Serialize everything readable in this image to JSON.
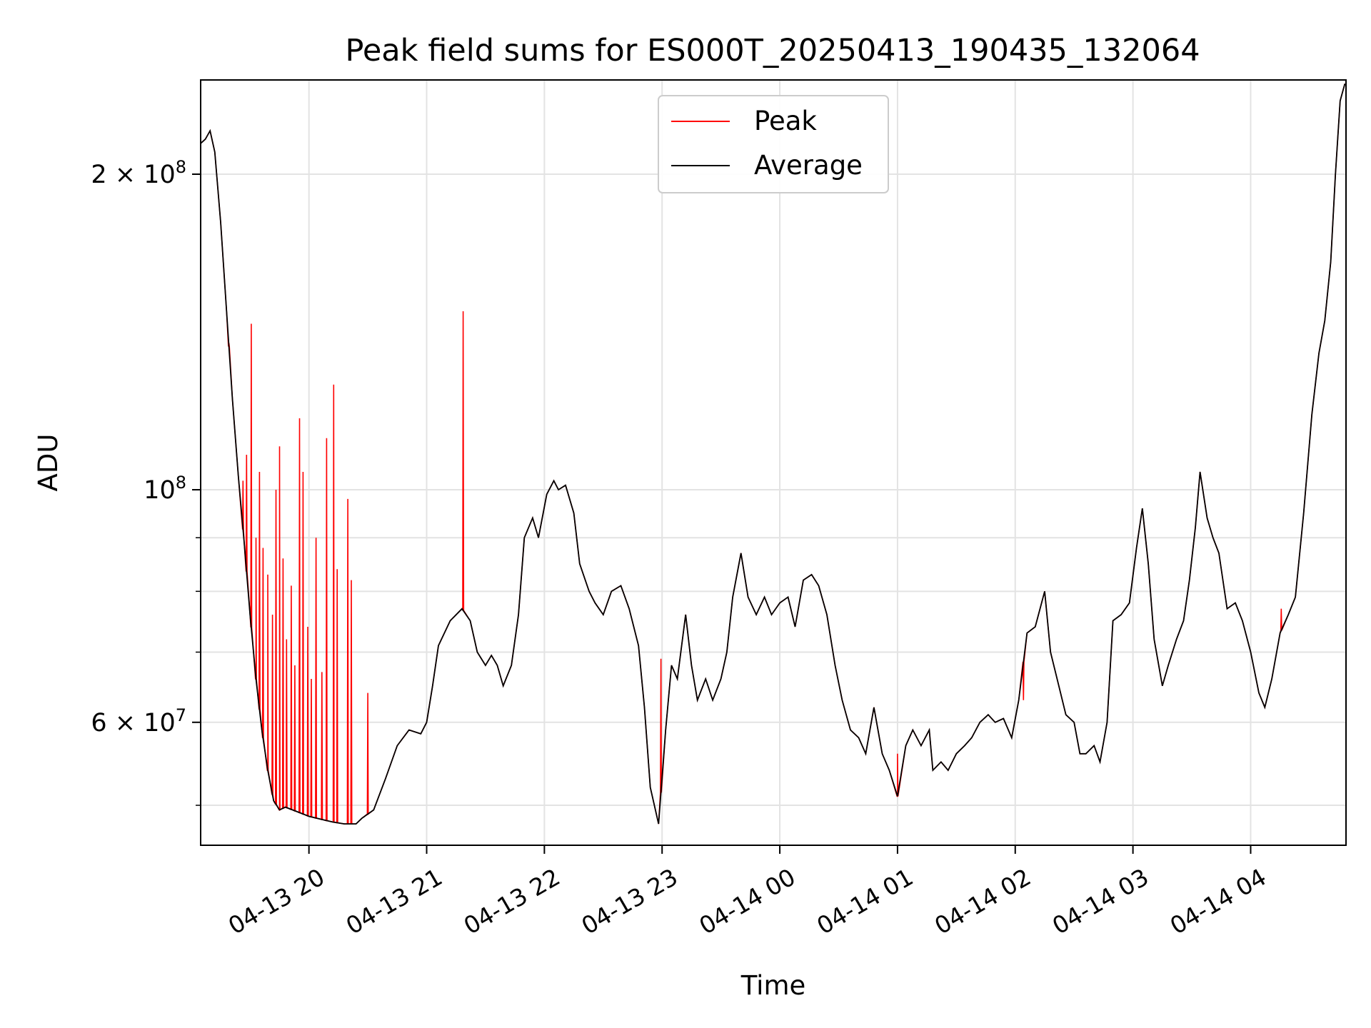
{
  "chart_data": {
    "type": "line",
    "title": "Peak field sums for ES000T_20250413_190435_132064",
    "xlabel": "Time",
    "ylabel": "ADU",
    "yscale": "log",
    "x_unit": "hours",
    "xlim": [
      19.08,
      28.81
    ],
    "ylim": [
      45800000,
      246000000
    ],
    "x_ticks": [
      {
        "value": 20,
        "label": "04-13 20"
      },
      {
        "value": 21,
        "label": "04-13 21"
      },
      {
        "value": 22,
        "label": "04-13 22"
      },
      {
        "value": 23,
        "label": "04-13 23"
      },
      {
        "value": 24,
        "label": "04-14 00"
      },
      {
        "value": 25,
        "label": "04-14 01"
      },
      {
        "value": 26,
        "label": "04-14 02"
      },
      {
        "value": 27,
        "label": "04-14 03"
      },
      {
        "value": 28,
        "label": "04-14 04"
      }
    ],
    "y_major_ticks": [
      {
        "value": 100000000,
        "base": "10",
        "exp": "8",
        "mant": ""
      },
      {
        "value": 200000000,
        "base": "10",
        "exp": "8",
        "mant": "2"
      },
      {
        "value": 60000000,
        "base": "10",
        "exp": "7",
        "mant": "6"
      }
    ],
    "y_minor_ticks": [
      50000000,
      70000000,
      80000000,
      90000000
    ],
    "grid": true,
    "legend_position": "upper-center",
    "series": [
      {
        "name": "Peak",
        "color": "#ff0000",
        "spikes": [
          [
            19.32,
            138000000.0
          ],
          [
            19.44,
            102000000.0
          ],
          [
            19.47,
            108000000.0
          ],
          [
            19.51,
            144000000.0
          ],
          [
            19.55,
            90000000.0
          ],
          [
            19.58,
            104000000.0
          ],
          [
            19.61,
            88000000.0
          ],
          [
            19.65,
            83000000.0
          ],
          [
            19.69,
            76000000.0
          ],
          [
            19.72,
            100000000.0
          ],
          [
            19.75,
            110000000.0
          ],
          [
            19.78,
            86000000.0
          ],
          [
            19.81,
            72000000.0
          ],
          [
            19.85,
            81000000.0
          ],
          [
            19.88,
            68000000.0
          ],
          [
            19.92,
            117000000.0
          ],
          [
            19.95,
            104000000.0
          ],
          [
            19.99,
            74000000.0
          ],
          [
            20.02,
            66000000.0
          ],
          [
            20.06,
            90000000.0
          ],
          [
            20.11,
            67000000.0
          ],
          [
            20.15,
            112000000.0
          ],
          [
            20.21,
            126000000.0
          ],
          [
            20.24,
            84000000.0
          ],
          [
            20.33,
            98000000.0
          ],
          [
            20.36,
            82000000.0
          ],
          [
            20.5,
            64000000.0
          ],
          [
            21.31,
            148000000.0
          ],
          [
            22.99,
            69000000.0
          ],
          [
            25.0,
            56000000.0
          ],
          [
            26.07,
            63000000.0
          ],
          [
            28.26,
            77000000.0
          ]
        ]
      },
      {
        "name": "Average",
        "color": "#000000",
        "points": [
          [
            19.08,
            214000000.0
          ],
          [
            19.12,
            216000000.0
          ],
          [
            19.16,
            220000000.0
          ],
          [
            19.2,
            210000000.0
          ],
          [
            19.25,
            180000000.0
          ],
          [
            19.3,
            148000000.0
          ],
          [
            19.35,
            122000000.0
          ],
          [
            19.4,
            103000000.0
          ],
          [
            19.45,
            89000000.0
          ],
          [
            19.5,
            76000000.0
          ],
          [
            19.55,
            66000000.0
          ],
          [
            19.6,
            59000000.0
          ],
          [
            19.65,
            54000000.0
          ],
          [
            19.7,
            50500000.0
          ],
          [
            19.75,
            49500000.0
          ],
          [
            19.8,
            49800000.0
          ],
          [
            19.9,
            49300000.0
          ],
          [
            20.0,
            48800000.0
          ],
          [
            20.1,
            48500000.0
          ],
          [
            20.2,
            48200000.0
          ],
          [
            20.3,
            48000000.0
          ],
          [
            20.4,
            48000000.0
          ],
          [
            20.45,
            48600000.0
          ],
          [
            20.55,
            49500000.0
          ],
          [
            20.65,
            53000000.0
          ],
          [
            20.75,
            57000000.0
          ],
          [
            20.85,
            59000000.0
          ],
          [
            20.95,
            58500000.0
          ],
          [
            21.0,
            60000000.0
          ],
          [
            21.05,
            65000000.0
          ],
          [
            21.1,
            71000000.0
          ],
          [
            21.2,
            75000000.0
          ],
          [
            21.3,
            77000000.0
          ],
          [
            21.37,
            75000000.0
          ],
          [
            21.43,
            70000000.0
          ],
          [
            21.5,
            68000000.0
          ],
          [
            21.55,
            69500000.0
          ],
          [
            21.6,
            68000000.0
          ],
          [
            21.65,
            65000000.0
          ],
          [
            21.72,
            68000000.0
          ],
          [
            21.78,
            76000000.0
          ],
          [
            21.83,
            90000000.0
          ],
          [
            21.9,
            94000000.0
          ],
          [
            21.95,
            90000000.0
          ],
          [
            22.02,
            99000000.0
          ],
          [
            22.08,
            102000000.0
          ],
          [
            22.12,
            100000000.0
          ],
          [
            22.18,
            101000000.0
          ],
          [
            22.25,
            95000000.0
          ],
          [
            22.3,
            85000000.0
          ],
          [
            22.38,
            80000000.0
          ],
          [
            22.43,
            78000000.0
          ],
          [
            22.5,
            76000000.0
          ],
          [
            22.57,
            80000000.0
          ],
          [
            22.65,
            81000000.0
          ],
          [
            22.72,
            77000000.0
          ],
          [
            22.8,
            71000000.0
          ],
          [
            22.85,
            62000000.0
          ],
          [
            22.9,
            52000000.0
          ],
          [
            22.97,
            48000000.0
          ],
          [
            23.03,
            59000000.0
          ],
          [
            23.08,
            68000000.0
          ],
          [
            23.13,
            66000000.0
          ],
          [
            23.2,
            76000000.0
          ],
          [
            23.25,
            68000000.0
          ],
          [
            23.3,
            63000000.0
          ],
          [
            23.37,
            66000000.0
          ],
          [
            23.43,
            63000000.0
          ],
          [
            23.5,
            66000000.0
          ],
          [
            23.55,
            70000000.0
          ],
          [
            23.6,
            79000000.0
          ],
          [
            23.67,
            87000000.0
          ],
          [
            23.73,
            79000000.0
          ],
          [
            23.8,
            76000000.0
          ],
          [
            23.87,
            79000000.0
          ],
          [
            23.93,
            76000000.0
          ],
          [
            24.0,
            78000000.0
          ],
          [
            24.07,
            79000000.0
          ],
          [
            24.13,
            74000000.0
          ],
          [
            24.2,
            82000000.0
          ],
          [
            24.27,
            83000000.0
          ],
          [
            24.33,
            81000000.0
          ],
          [
            24.4,
            76000000.0
          ],
          [
            24.47,
            68000000.0
          ],
          [
            24.53,
            63000000.0
          ],
          [
            24.6,
            59000000.0
          ],
          [
            24.67,
            58000000.0
          ],
          [
            24.73,
            56000000.0
          ],
          [
            24.8,
            62000000.0
          ],
          [
            24.87,
            56000000.0
          ],
          [
            24.93,
            54000000.0
          ],
          [
            25.0,
            51000000.0
          ],
          [
            25.07,
            57000000.0
          ],
          [
            25.13,
            59000000.0
          ],
          [
            25.2,
            57000000.0
          ],
          [
            25.27,
            59000000.0
          ],
          [
            25.3,
            54000000.0
          ],
          [
            25.37,
            55000000.0
          ],
          [
            25.43,
            54000000.0
          ],
          [
            25.5,
            56000000.0
          ],
          [
            25.57,
            57000000.0
          ],
          [
            25.63,
            58000000.0
          ],
          [
            25.7,
            60000000.0
          ],
          [
            25.77,
            61000000.0
          ],
          [
            25.83,
            60000000.0
          ],
          [
            25.9,
            60500000.0
          ],
          [
            25.97,
            58000000.0
          ],
          [
            26.03,
            63000000.0
          ],
          [
            26.1,
            73000000.0
          ],
          [
            26.17,
            74000000.0
          ],
          [
            26.25,
            80000000.0
          ],
          [
            26.3,
            70000000.0
          ],
          [
            26.37,
            65000000.0
          ],
          [
            26.43,
            61000000.0
          ],
          [
            26.5,
            60000000.0
          ],
          [
            26.55,
            56000000.0
          ],
          [
            26.6,
            56000000.0
          ],
          [
            26.67,
            57000000.0
          ],
          [
            26.72,
            55000000.0
          ],
          [
            26.78,
            60000000.0
          ],
          [
            26.83,
            75000000.0
          ],
          [
            26.9,
            76000000.0
          ],
          [
            26.97,
            78000000.0
          ],
          [
            27.03,
            88000000.0
          ],
          [
            27.08,
            96000000.0
          ],
          [
            27.13,
            85000000.0
          ],
          [
            27.18,
            72000000.0
          ],
          [
            27.25,
            65000000.0
          ],
          [
            27.3,
            68000000.0
          ],
          [
            27.37,
            72000000.0
          ],
          [
            27.43,
            75000000.0
          ],
          [
            27.48,
            82000000.0
          ],
          [
            27.53,
            92000000.0
          ],
          [
            27.57,
            104000000.0
          ],
          [
            27.63,
            94000000.0
          ],
          [
            27.68,
            90000000.0
          ],
          [
            27.73,
            87000000.0
          ],
          [
            27.8,
            77000000.0
          ],
          [
            27.87,
            78000000.0
          ],
          [
            27.93,
            75000000.0
          ],
          [
            28.0,
            70000000.0
          ],
          [
            28.07,
            64000000.0
          ],
          [
            28.12,
            62000000.0
          ],
          [
            28.18,
            66000000.0
          ],
          [
            28.25,
            73000000.0
          ],
          [
            28.32,
            76000000.0
          ],
          [
            28.38,
            79000000.0
          ],
          [
            28.45,
            95000000.0
          ],
          [
            28.52,
            118000000.0
          ],
          [
            28.58,
            135000000.0
          ],
          [
            28.63,
            145000000.0
          ],
          [
            28.68,
            165000000.0
          ],
          [
            28.72,
            200000000.0
          ],
          [
            28.76,
            235000000.0
          ],
          [
            28.8,
            244000000.0
          ]
        ]
      }
    ]
  }
}
